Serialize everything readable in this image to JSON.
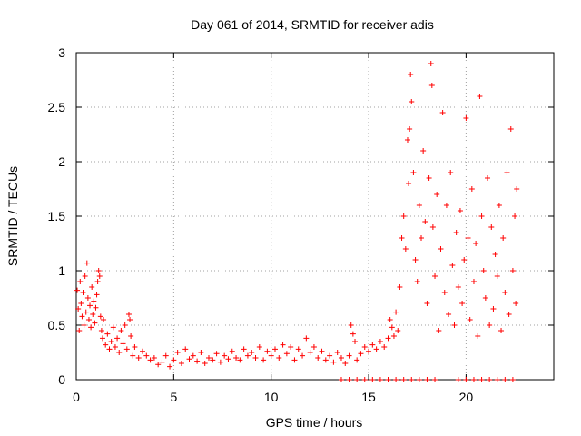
{
  "chart_data": {
    "type": "scatter",
    "title": "Day 061 of 2014, SRMTID for receiver adis",
    "xlabel": "GPS time / hours",
    "ylabel": "SRMTID / TECUs",
    "xlim": [
      0,
      24.5
    ],
    "ylim": [
      0,
      3
    ],
    "xticks": [
      0,
      5,
      10,
      15,
      20
    ],
    "yticks": [
      0,
      0.5,
      1,
      1.5,
      2,
      2.5,
      3
    ],
    "xtick_labels": [
      "0",
      "5",
      "10",
      "15",
      "20"
    ],
    "ytick_labels": [
      "0",
      "0.5",
      "1",
      "1.5",
      "2",
      "2.5",
      "3"
    ],
    "grid": true,
    "marker": "plus",
    "series": [
      {
        "name": "SRMTID",
        "color": "#ff0000",
        "points": [
          [
            0.05,
            0.82
          ],
          [
            0.1,
            0.65
          ],
          [
            0.15,
            0.45
          ],
          [
            0.2,
            0.9
          ],
          [
            0.25,
            0.7
          ],
          [
            0.3,
            0.58
          ],
          [
            0.35,
            0.8
          ],
          [
            0.4,
            0.5
          ],
          [
            0.45,
            0.95
          ],
          [
            0.5,
            0.62
          ],
          [
            0.55,
            1.07
          ],
          [
            0.6,
            0.75
          ],
          [
            0.65,
            0.55
          ],
          [
            0.7,
            0.68
          ],
          [
            0.75,
            0.48
          ],
          [
            0.8,
            0.85
          ],
          [
            0.85,
            0.6
          ],
          [
            0.9,
            0.72
          ],
          [
            0.95,
            0.52
          ],
          [
            1.0,
            0.66
          ],
          [
            1.05,
            0.78
          ],
          [
            1.1,
            0.9
          ],
          [
            1.15,
            1.0
          ],
          [
            1.2,
            0.95
          ],
          [
            1.25,
            0.58
          ],
          [
            1.3,
            0.45
          ],
          [
            1.35,
            0.38
          ],
          [
            1.4,
            0.55
          ],
          [
            1.5,
            0.32
          ],
          [
            1.6,
            0.42
          ],
          [
            1.7,
            0.28
          ],
          [
            1.8,
            0.35
          ],
          [
            1.9,
            0.48
          ],
          [
            2.0,
            0.3
          ],
          [
            2.1,
            0.38
          ],
          [
            2.2,
            0.25
          ],
          [
            2.3,
            0.45
          ],
          [
            2.4,
            0.33
          ],
          [
            2.5,
            0.5
          ],
          [
            2.6,
            0.28
          ],
          [
            2.7,
            0.6
          ],
          [
            2.75,
            0.55
          ],
          [
            2.8,
            0.4
          ],
          [
            2.9,
            0.22
          ],
          [
            3.0,
            0.3
          ],
          [
            3.2,
            0.2
          ],
          [
            3.4,
            0.26
          ],
          [
            3.6,
            0.22
          ],
          [
            3.8,
            0.18
          ],
          [
            4.0,
            0.2
          ],
          [
            4.2,
            0.14
          ],
          [
            4.4,
            0.16
          ],
          [
            4.6,
            0.22
          ],
          [
            4.8,
            0.12
          ],
          [
            5.0,
            0.18
          ],
          [
            5.2,
            0.25
          ],
          [
            5.4,
            0.15
          ],
          [
            5.6,
            0.28
          ],
          [
            5.8,
            0.19
          ],
          [
            6.0,
            0.22
          ],
          [
            6.2,
            0.17
          ],
          [
            6.4,
            0.25
          ],
          [
            6.6,
            0.15
          ],
          [
            6.8,
            0.2
          ],
          [
            7.0,
            0.18
          ],
          [
            7.2,
            0.24
          ],
          [
            7.4,
            0.16
          ],
          [
            7.6,
            0.22
          ],
          [
            7.8,
            0.19
          ],
          [
            8.0,
            0.26
          ],
          [
            8.2,
            0.2
          ],
          [
            8.4,
            0.18
          ],
          [
            8.6,
            0.28
          ],
          [
            8.8,
            0.22
          ],
          [
            9.0,
            0.25
          ],
          [
            9.2,
            0.2
          ],
          [
            9.4,
            0.3
          ],
          [
            9.6,
            0.18
          ],
          [
            9.8,
            0.26
          ],
          [
            10.0,
            0.22
          ],
          [
            10.2,
            0.28
          ],
          [
            10.4,
            0.2
          ],
          [
            10.6,
            0.32
          ],
          [
            10.8,
            0.24
          ],
          [
            11.0,
            0.3
          ],
          [
            11.2,
            0.18
          ],
          [
            11.4,
            0.28
          ],
          [
            11.6,
            0.22
          ],
          [
            11.8,
            0.38
          ],
          [
            12.0,
            0.25
          ],
          [
            12.2,
            0.3
          ],
          [
            12.4,
            0.2
          ],
          [
            12.6,
            0.26
          ],
          [
            12.8,
            0.18
          ],
          [
            13.0,
            0.22
          ],
          [
            13.2,
            0.16
          ],
          [
            13.4,
            0.25
          ],
          [
            13.6,
            0.2
          ],
          [
            13.8,
            0.15
          ],
          [
            14.0,
            0.22
          ],
          [
            14.1,
            0.5
          ],
          [
            14.2,
            0.42
          ],
          [
            14.3,
            0.35
          ],
          [
            14.4,
            0.18
          ],
          [
            14.6,
            0.24
          ],
          [
            14.8,
            0.3
          ],
          [
            15.0,
            0.26
          ],
          [
            15.2,
            0.32
          ],
          [
            15.4,
            0.28
          ],
          [
            15.6,
            0.35
          ],
          [
            15.8,
            0.3
          ],
          [
            16.0,
            0.38
          ],
          [
            16.1,
            0.55
          ],
          [
            16.2,
            0.48
          ],
          [
            16.3,
            0.4
          ],
          [
            16.4,
            0.62
          ],
          [
            16.5,
            0.45
          ],
          [
            16.6,
            0.85
          ],
          [
            16.7,
            1.3
          ],
          [
            16.8,
            1.5
          ],
          [
            16.9,
            1.2
          ],
          [
            17.0,
            2.2
          ],
          [
            17.05,
            1.8
          ],
          [
            17.1,
            2.3
          ],
          [
            17.15,
            2.8
          ],
          [
            17.2,
            2.55
          ],
          [
            17.3,
            1.9
          ],
          [
            17.4,
            1.1
          ],
          [
            17.5,
            0.9
          ],
          [
            17.6,
            1.6
          ],
          [
            17.7,
            1.3
          ],
          [
            17.8,
            2.1
          ],
          [
            17.9,
            1.45
          ],
          [
            18.0,
            0.7
          ],
          [
            18.1,
            1.85
          ],
          [
            18.2,
            2.9
          ],
          [
            18.25,
            2.7
          ],
          [
            18.3,
            1.4
          ],
          [
            18.4,
            0.95
          ],
          [
            18.5,
            1.7
          ],
          [
            18.6,
            0.45
          ],
          [
            18.7,
            1.2
          ],
          [
            18.8,
            2.45
          ],
          [
            18.9,
            0.8
          ],
          [
            19.0,
            1.6
          ],
          [
            19.1,
            0.6
          ],
          [
            19.2,
            1.9
          ],
          [
            19.3,
            1.05
          ],
          [
            19.4,
            0.5
          ],
          [
            19.5,
            1.35
          ],
          [
            19.6,
            0.85
          ],
          [
            19.7,
            1.55
          ],
          [
            19.8,
            0.7
          ],
          [
            19.9,
            1.1
          ],
          [
            20.0,
            2.4
          ],
          [
            20.1,
            1.3
          ],
          [
            20.2,
            0.55
          ],
          [
            20.3,
            1.75
          ],
          [
            20.4,
            0.9
          ],
          [
            20.5,
            1.25
          ],
          [
            20.6,
            0.4
          ],
          [
            20.7,
            2.6
          ],
          [
            20.8,
            1.5
          ],
          [
            20.9,
            1.0
          ],
          [
            21.0,
            0.75
          ],
          [
            21.1,
            1.85
          ],
          [
            21.2,
            0.5
          ],
          [
            21.3,
            1.4
          ],
          [
            21.4,
            0.65
          ],
          [
            21.5,
            1.15
          ],
          [
            21.6,
            0.95
          ],
          [
            21.7,
            1.6
          ],
          [
            21.8,
            0.45
          ],
          [
            21.9,
            1.3
          ],
          [
            22.0,
            0.8
          ],
          [
            22.1,
            1.9
          ],
          [
            22.2,
            0.6
          ],
          [
            22.3,
            2.3
          ],
          [
            22.4,
            1.0
          ],
          [
            22.5,
            1.5
          ],
          [
            22.55,
            0.7
          ],
          [
            22.6,
            1.75
          ],
          [
            13.6,
            0.0
          ],
          [
            14.0,
            0.0
          ],
          [
            14.4,
            0.0
          ],
          [
            14.8,
            0.0
          ],
          [
            15.2,
            0.0
          ],
          [
            15.6,
            0.0
          ],
          [
            16.0,
            0.0
          ],
          [
            16.4,
            0.0
          ],
          [
            16.8,
            0.0
          ],
          [
            17.2,
            0.0
          ],
          [
            17.6,
            0.0
          ],
          [
            18.0,
            0.0
          ],
          [
            18.4,
            0.0
          ],
          [
            19.6,
            0.0
          ],
          [
            20.0,
            0.0
          ],
          [
            20.4,
            0.0
          ],
          [
            20.8,
            0.0
          ],
          [
            21.2,
            0.0
          ],
          [
            21.6,
            0.0
          ],
          [
            22.0,
            0.0
          ],
          [
            22.4,
            0.0
          ]
        ]
      }
    ]
  }
}
